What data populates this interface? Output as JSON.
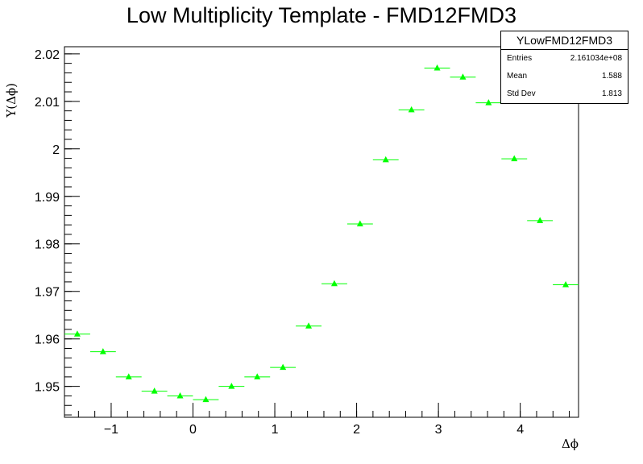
{
  "chart_data": {
    "type": "scatter",
    "title": "Low Multiplicity Template - FMD12FMD3",
    "xlabel": "Δϕ",
    "ylabel": "Y(Δϕ)",
    "xlim": [
      -1.5708,
      4.7124
    ],
    "ylim": [
      1.9435,
      2.0215
    ],
    "x_ticks": [
      -1,
      0,
      1,
      2,
      3,
      4
    ],
    "x_tick_labels": [
      "−1",
      "0",
      "1",
      "2",
      "3",
      "4"
    ],
    "y_ticks": [
      1.95,
      1.96,
      1.97,
      1.98,
      1.99,
      2.0,
      2.01,
      2.02
    ],
    "y_tick_labels": [
      "1.95",
      "1.96",
      "1.97",
      "1.98",
      "1.99",
      "2",
      "2.01",
      "2.02"
    ],
    "bin_width": 0.31416,
    "marker": "triangle-up",
    "marker_color": "#00ff00",
    "grid": false,
    "series": [
      {
        "x": [
          -1.4137,
          -1.0996,
          -0.7854,
          -0.4712,
          -0.1571,
          0.1571,
          0.4712,
          0.7854,
          1.0996,
          1.4137,
          1.7279,
          2.042,
          2.3562,
          2.6704,
          2.9845,
          3.2987,
          3.6128,
          3.927,
          4.2412,
          4.5553
        ],
        "y": [
          1.961,
          1.9573,
          1.952,
          1.949,
          1.948,
          1.9472,
          1.95,
          1.952,
          1.954,
          1.9627,
          1.9716,
          1.9842,
          1.9977,
          2.0082,
          2.017,
          2.0151,
          2.0097,
          1.9979,
          1.9849,
          1.9714
        ]
      }
    ]
  },
  "stats_box": {
    "title": "YLowFMD12FMD3",
    "entries_label": "Entries",
    "entries_value": "2.161034e+08",
    "mean_label": "Mean",
    "mean_value": "1.588",
    "stddev_label": "Std Dev",
    "stddev_value": "1.813"
  }
}
